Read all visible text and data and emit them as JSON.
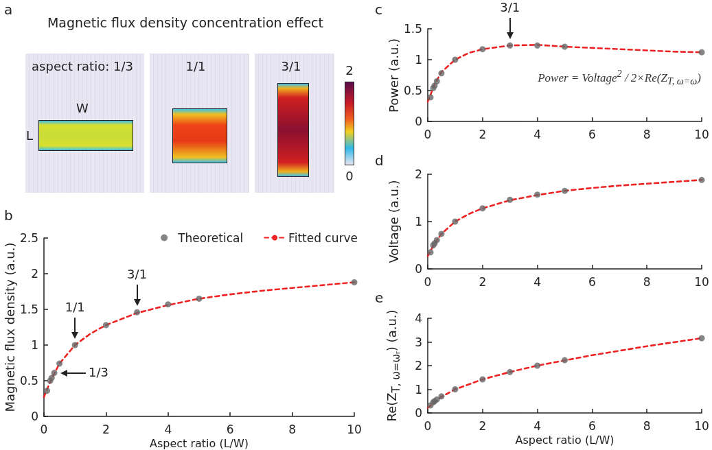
{
  "chart_data": [
    {
      "type": "other",
      "title": "Magnetic flux density concentration effect",
      "annotations": [
        "a",
        "aspect ratio: 1/3",
        "1/1",
        "3/1",
        "W",
        "L",
        "2",
        "0"
      ]
    },
    {
      "type": "scatter",
      "xlabel": "Aspect ratio (L/W)",
      "ylabel": "Magnetic flux density (a.u.)",
      "xlim": [
        0,
        10
      ],
      "xticks": [
        0,
        2,
        4,
        6,
        8,
        10
      ],
      "ylim": [
        0,
        2.5
      ],
      "yticks": [
        0,
        0.5,
        1,
        1.5,
        2,
        2.5
      ],
      "grid": false,
      "legend": "top right",
      "series": [
        {
          "name": "Theoretical",
          "type": "scatter",
          "marker": "circle",
          "color": "#666666",
          "x": [
            0.1,
            0.2,
            0.25,
            0.333,
            0.5,
            1,
            2,
            3,
            4,
            5,
            10
          ],
          "values": [
            0.36,
            0.5,
            0.54,
            0.61,
            0.74,
            1.0,
            1.28,
            1.46,
            1.57,
            1.65,
            1.88
          ]
        },
        {
          "name": "Fitted curve",
          "type": "line",
          "marker": "none",
          "line_style": "dashed",
          "color": "#ee2222",
          "x": [
            0,
            0.1,
            0.25,
            0.5,
            1,
            1.5,
            2,
            3,
            4,
            5,
            6,
            7,
            8,
            9,
            10
          ],
          "values": [
            0.27,
            0.38,
            0.53,
            0.74,
            1.0,
            1.16,
            1.28,
            1.45,
            1.56,
            1.65,
            1.71,
            1.76,
            1.8,
            1.84,
            1.88
          ]
        }
      ],
      "annotations": [
        "b",
        {
          "text": "1/3",
          "x": 0.333,
          "y": 0.61
        },
        {
          "text": "1/1",
          "x": 1,
          "y": 1.0
        },
        {
          "text": "3/1",
          "x": 3,
          "y": 1.46
        }
      ]
    },
    {
      "type": "scatter",
      "ylabel": "Power (a.u.)",
      "xlim": [
        0,
        10
      ],
      "xticks": [
        0,
        2,
        4,
        6,
        8,
        10
      ],
      "ylim": [
        0,
        1.5
      ],
      "yticks": [
        0,
        0.5,
        1,
        1.5
      ],
      "grid": false,
      "legend": false,
      "series": [
        {
          "type": "scatter",
          "marker": "circle",
          "color": "#666666",
          "x": [
            0.1,
            0.2,
            0.25,
            0.333,
            0.5,
            1,
            2,
            3,
            4,
            5,
            10
          ],
          "values": [
            0.39,
            0.54,
            0.58,
            0.65,
            0.78,
            1.0,
            1.17,
            1.23,
            1.23,
            1.21,
            1.12
          ]
        },
        {
          "type": "line",
          "marker": "none",
          "line_style": "dashed",
          "color": "#ee2222",
          "x": [
            0,
            0.25,
            0.5,
            1,
            1.5,
            2,
            3,
            4,
            5,
            6,
            7,
            8,
            9,
            10
          ],
          "values": [
            0.32,
            0.6,
            0.8,
            1.0,
            1.11,
            1.17,
            1.23,
            1.24,
            1.21,
            1.19,
            1.17,
            1.15,
            1.13,
            1.12
          ]
        }
      ],
      "annotations": [
        "c",
        "Power = Voltage$^{2}$ / 2×Re(Z$_{T, ω=ω}$)",
        {
          "text": "3/1",
          "x": 3,
          "y": 1.23
        }
      ]
    },
    {
      "type": "scatter",
      "ylabel": "Voltage (a.u.)",
      "xlim": [
        0,
        10
      ],
      "xticks": [
        0,
        2,
        4,
        6,
        8,
        10
      ],
      "ylim": [
        0,
        2
      ],
      "yticks": [
        0,
        1,
        2
      ],
      "grid": false,
      "legend": false,
      "series": [
        {
          "type": "scatter",
          "marker": "circle",
          "color": "#666666",
          "x": [
            0.1,
            0.2,
            0.25,
            0.333,
            0.5,
            1,
            2,
            3,
            4,
            5,
            10
          ],
          "values": [
            0.35,
            0.5,
            0.54,
            0.61,
            0.74,
            1.0,
            1.28,
            1.46,
            1.57,
            1.65,
            1.88
          ]
        },
        {
          "type": "line",
          "marker": "none",
          "line_style": "dashed",
          "color": "#ee2222",
          "x": [
            0,
            0.1,
            0.25,
            0.5,
            1,
            1.5,
            2,
            3,
            4,
            5,
            6,
            7,
            8,
            9,
            10
          ],
          "values": [
            0.27,
            0.38,
            0.53,
            0.74,
            1.0,
            1.16,
            1.28,
            1.45,
            1.56,
            1.65,
            1.71,
            1.76,
            1.8,
            1.84,
            1.88
          ]
        }
      ],
      "annotations": [
        "d"
      ]
    },
    {
      "type": "scatter",
      "xlabel": "Aspect ratio (L/W)",
      "ylabel": "Re(Z$_{T, ω=ωᵣ}$) (a.u.)",
      "xlim": [
        0,
        10
      ],
      "xticks": [
        0,
        2,
        4,
        6,
        8,
        10
      ],
      "ylim": [
        0,
        4
      ],
      "yticks": [
        0,
        1,
        2,
        3,
        4
      ],
      "grid": false,
      "legend": false,
      "series": [
        {
          "type": "scatter",
          "marker": "circle",
          "color": "#666666",
          "x": [
            0.1,
            0.2,
            0.25,
            0.333,
            0.5,
            1,
            2,
            3,
            4,
            5,
            10
          ],
          "values": [
            0.32,
            0.45,
            0.5,
            0.57,
            0.7,
            1.0,
            1.42,
            1.73,
            2.0,
            2.23,
            3.16
          ]
        },
        {
          "type": "line",
          "marker": "none",
          "line_style": "dashed",
          "color": "#ee2222",
          "x": [
            0,
            0.5,
            1,
            2,
            3,
            4,
            5,
            6,
            7,
            8,
            9,
            10
          ],
          "values": [
            0.22,
            0.68,
            1.0,
            1.42,
            1.73,
            2.0,
            2.22,
            2.44,
            2.63,
            2.82,
            2.99,
            3.16
          ]
        }
      ],
      "annotations": [
        "e"
      ]
    }
  ]
}
